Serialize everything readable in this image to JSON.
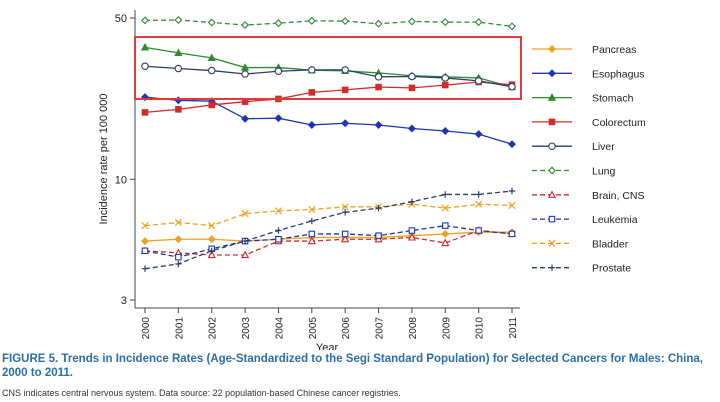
{
  "caption": {
    "title": "FIGURE 5. Trends in Incidence Rates (Age-Standardized to the Segi Standard Population) for Selected Cancers for Males: China, 2000 to 2011.",
    "note": "CNS indicates central nervous system. Data source: 22 population-based Chinese cancer registries."
  },
  "chart_data": {
    "type": "line",
    "title": "",
    "xlabel": "Year",
    "ylabel": "Incidence rate per 100 000",
    "y_scale": "log",
    "ylim": [
      3,
      50
    ],
    "yticks": [
      3,
      10,
      50
    ],
    "x": [
      2000,
      2001,
      2002,
      2003,
      2004,
      2005,
      2006,
      2007,
      2008,
      2009,
      2010,
      2011
    ],
    "grid": false,
    "legend_position": "right",
    "highlight_box": {
      "series": [
        "Stomach",
        "Liver",
        "Colorectum",
        "Esophagus"
      ],
      "color": "#e03a3a"
    },
    "series": [
      {
        "name": "Pancreas",
        "color": "#f0a020",
        "marker": "diamond",
        "dash": "solid",
        "values": [
          5.4,
          5.5,
          5.5,
          5.4,
          5.5,
          5.6,
          5.6,
          5.6,
          5.7,
          5.8,
          5.9,
          5.9
        ]
      },
      {
        "name": "Esophagus",
        "color": "#1f35b5",
        "marker": "diamond",
        "dash": "solid",
        "values": [
          22.7,
          22.0,
          21.8,
          18.3,
          18.4,
          17.2,
          17.5,
          17.2,
          16.6,
          16.2,
          15.7,
          14.2
        ]
      },
      {
        "name": "Stomach",
        "color": "#2e8b2e",
        "marker": "triangle",
        "dash": "solid",
        "values": [
          37.3,
          35.3,
          33.6,
          30.5,
          30.5,
          29.7,
          29.5,
          28.9,
          28.1,
          27.8,
          27.5,
          25.1
        ]
      },
      {
        "name": "Colorectum",
        "color": "#d42a2a",
        "marker": "square",
        "dash": "solid",
        "values": [
          19.5,
          20.1,
          21.0,
          21.7,
          22.3,
          23.8,
          24.4,
          25.1,
          24.9,
          25.6,
          26.4,
          25.7
        ]
      },
      {
        "name": "Liver",
        "color": "#2a3e6a",
        "marker": "circle-open",
        "dash": "solid",
        "values": [
          30.9,
          30.2,
          29.6,
          28.6,
          29.4,
          29.8,
          29.8,
          27.8,
          27.9,
          27.5,
          26.7,
          25.2
        ]
      },
      {
        "name": "Lung",
        "color": "#2e8b2e",
        "marker": "diamond-open",
        "dash": "dashed",
        "values": [
          48.8,
          49.0,
          47.8,
          46.6,
          47.5,
          48.6,
          48.5,
          47.2,
          48.3,
          48.0,
          48.0,
          46.0
        ]
      },
      {
        "name": "Brain, CNS",
        "color": "#d42a2a",
        "marker": "triangle-open",
        "dash": "dashed",
        "values": [
          4.9,
          4.8,
          4.7,
          4.7,
          5.4,
          5.4,
          5.5,
          5.5,
          5.6,
          5.3,
          6.0,
          5.8
        ]
      },
      {
        "name": "Leukemia",
        "color": "#1f35b5",
        "marker": "square-open",
        "dash": "dashed",
        "values": [
          4.9,
          4.6,
          5.0,
          5.4,
          5.5,
          5.8,
          5.8,
          5.7,
          6.0,
          6.3,
          6.0,
          5.8
        ]
      },
      {
        "name": "Bladder",
        "color": "#f0a020",
        "marker": "x",
        "dash": "dashed",
        "values": [
          6.3,
          6.5,
          6.3,
          7.1,
          7.3,
          7.4,
          7.6,
          7.6,
          7.8,
          7.5,
          7.8,
          7.7
        ]
      },
      {
        "name": "Prostate",
        "color": "#2a3e6a",
        "marker": "plus",
        "dash": "dashed",
        "values": [
          4.1,
          4.3,
          4.9,
          5.4,
          6.0,
          6.6,
          7.2,
          7.5,
          8.0,
          8.6,
          8.6,
          8.9
        ]
      }
    ]
  }
}
